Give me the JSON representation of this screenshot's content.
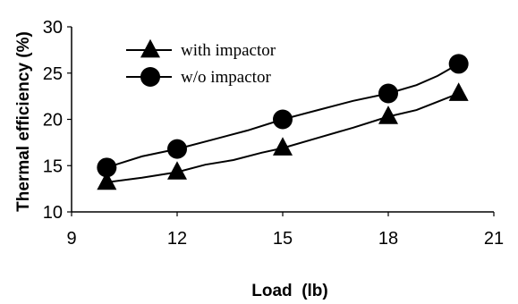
{
  "chart_data": {
    "type": "line",
    "xlabel": "Load  (lb)",
    "ylabel": "Thermal efficiency (%)",
    "xlim": [
      9,
      21
    ],
    "ylim": [
      10,
      30
    ],
    "xticks": [
      "9",
      "12",
      "15",
      "18",
      "21"
    ],
    "yticks": [
      "10",
      "15",
      "20",
      "25",
      "30"
    ],
    "grid": false,
    "legend_position": "top-left",
    "series": [
      {
        "name": "with impactor",
        "marker": "triangle",
        "color": "#000000",
        "points": [
          [
            10,
            13.2
          ],
          [
            12,
            14.3
          ],
          [
            15,
            16.9
          ],
          [
            18,
            20.3
          ],
          [
            20,
            22.8
          ]
        ],
        "line": [
          [
            10,
            13.2
          ],
          [
            11,
            13.7
          ],
          [
            12,
            14.3
          ],
          [
            12.8,
            15.1
          ],
          [
            13.6,
            15.6
          ],
          [
            14.4,
            16.4
          ],
          [
            15,
            16.9
          ],
          [
            16,
            18.0
          ],
          [
            17,
            19.1
          ],
          [
            18,
            20.3
          ],
          [
            18.8,
            21.0
          ],
          [
            19.4,
            21.9
          ],
          [
            20,
            22.8
          ]
        ]
      },
      {
        "name": "w/o impactor",
        "marker": "circle",
        "color": "#000000",
        "points": [
          [
            10,
            14.8
          ],
          [
            12,
            16.8
          ],
          [
            15,
            20.0
          ],
          [
            18,
            22.8
          ],
          [
            20,
            26.0
          ]
        ],
        "line": [
          [
            10,
            14.8
          ],
          [
            11,
            16.0
          ],
          [
            12,
            16.8
          ],
          [
            13,
            17.8
          ],
          [
            14,
            18.8
          ],
          [
            15,
            20.0
          ],
          [
            16,
            21.0
          ],
          [
            17,
            22.0
          ],
          [
            18,
            22.8
          ],
          [
            18.8,
            23.7
          ],
          [
            19.4,
            24.7
          ],
          [
            20,
            26.0
          ]
        ]
      }
    ]
  }
}
